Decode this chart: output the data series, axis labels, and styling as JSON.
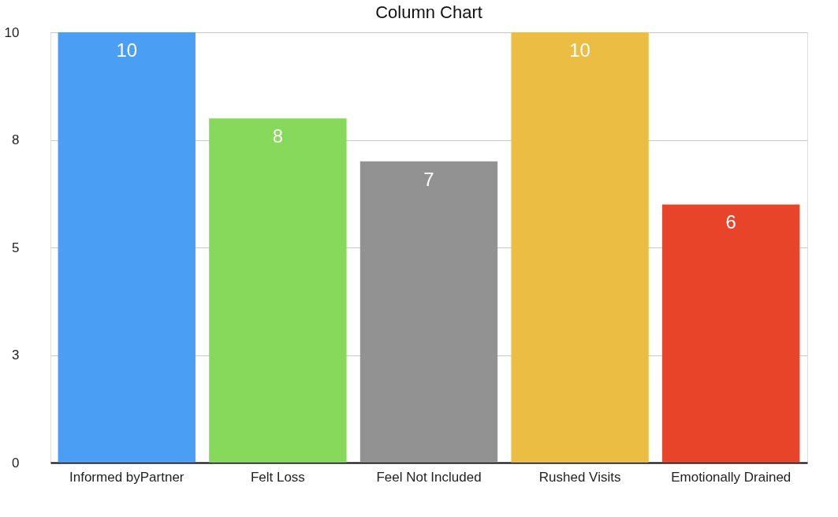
{
  "chart_data": {
    "type": "bar",
    "title": "Column Chart",
    "categories": [
      "Informed byPartner",
      "Felt Loss",
      "Feel Not Included",
      "Rushed Visits",
      "Emotionally Drained"
    ],
    "values": [
      10,
      8,
      7,
      10,
      6
    ],
    "colors": [
      "#4a9ff5",
      "#86d95a",
      "#929292",
      "#ecbd43",
      "#e84429"
    ],
    "ylim": [
      0,
      10
    ],
    "yticks": [
      0,
      {
        "value": 2.5,
        "label": "3"
      },
      5,
      {
        "value": 7.5,
        "label": "8"
      },
      10
    ],
    "grid": "y",
    "data_labels": true
  }
}
